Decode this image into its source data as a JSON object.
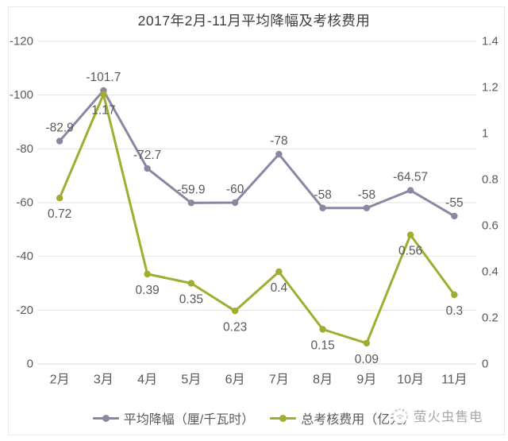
{
  "title": "2017年2月-11月平均降幅及考核费用",
  "colors": {
    "series1": "#8a87a1",
    "series2": "#a0ad30",
    "grid": "#e2e2e2",
    "baseline": "#d8d8d8",
    "axis_text": "#595959",
    "label_text": "#595959",
    "title_text": "#3d3d3d",
    "watermark_text": "#a9a9a9",
    "watermark_icon": "#c4c4c4"
  },
  "chart_data": {
    "type": "line",
    "title": "2017年2月-11月平均降幅及考核费用",
    "categories": [
      "2月",
      "3月",
      "4月",
      "5月",
      "6月",
      "7月",
      "8月",
      "9月",
      "10月",
      "11月"
    ],
    "series": [
      {
        "name": "平均降幅（厘/千瓦时）",
        "axis": "left",
        "color": "#8a87a1",
        "label_position": "above",
        "values": [
          -82.9,
          -101.7,
          -72.7,
          -59.9,
          -60,
          -78,
          -58,
          -58,
          -64.57,
          -55
        ],
        "labels": [
          "-82.9",
          "-101.7",
          "-72.7",
          "-59.9",
          "-60",
          "-78",
          "-58",
          "-58",
          "-64.57",
          "-55"
        ]
      },
      {
        "name": "总考核费用（亿元）",
        "axis": "right",
        "color": "#a0ad30",
        "label_position": "below",
        "values": [
          0.72,
          1.17,
          0.39,
          0.35,
          0.23,
          0.4,
          0.15,
          0.09,
          0.56,
          0.3
        ],
        "labels": [
          "0.72",
          "1.17",
          "0.39",
          "0.35",
          "0.23",
          "0.4",
          "0.15",
          "0.09",
          "0.56",
          "0.3"
        ]
      }
    ],
    "left_axis": {
      "ticks": [
        "-120",
        "-100",
        "-80",
        "-60",
        "-40",
        "-20",
        "0"
      ],
      "top_value": -120,
      "bottom_value": 0,
      "inverted": true
    },
    "right_axis": {
      "ticks": [
        "1.4",
        "1.2",
        "1",
        "0.8",
        "0.6",
        "0.4",
        "0.2",
        "0"
      ],
      "top_value": 1.4,
      "bottom_value": 0
    },
    "grid": true,
    "legend_position": "bottom"
  },
  "legend": {
    "item1": "平均降幅（厘/千瓦时）",
    "item2": "总考核费用（亿元）"
  },
  "watermark": {
    "icon": "firefly-logo",
    "text": "萤火虫售电"
  }
}
